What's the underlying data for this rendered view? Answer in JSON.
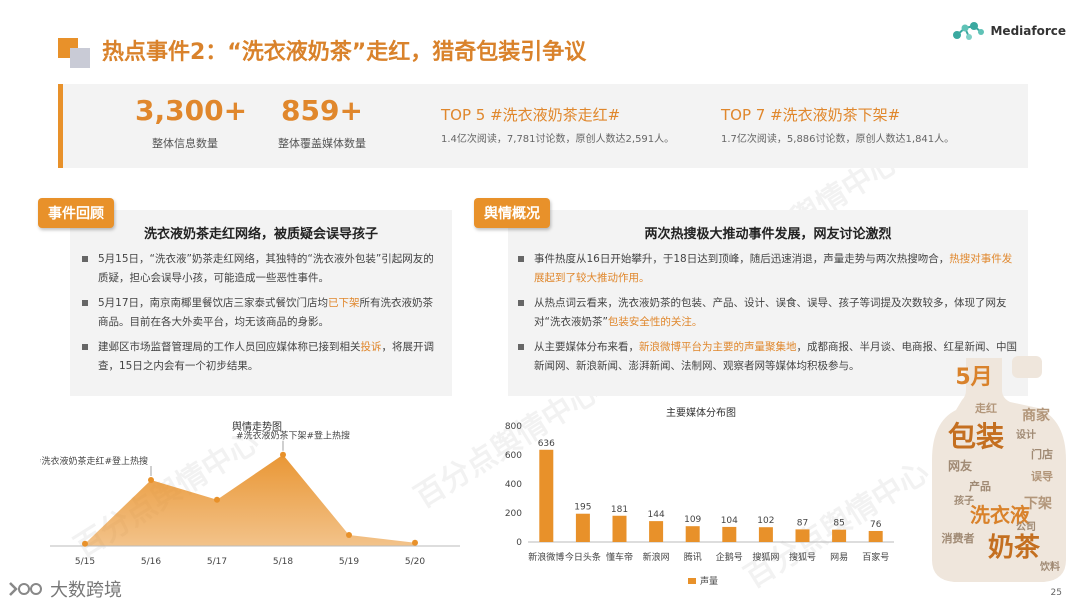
{
  "header": {
    "title": "热点事件2：“洗衣液奶茶”走红，猎奇包装引争议",
    "brand": "Mediaforce"
  },
  "stats": [
    {
      "value": "3,300+",
      "label": "整体信息数量"
    },
    {
      "value": "859+",
      "label": "整体覆盖媒体数量"
    }
  ],
  "topics": [
    {
      "title": "TOP 5 #洗衣液奶茶走红#",
      "desc": "1.4亿次阅读，7,781讨论数，原创人数达2,591人。"
    },
    {
      "title": "TOP 7 #洗衣液奶茶下架#",
      "desc": "1.7亿次阅读，5,886讨论数，原创人数达1,841人。"
    }
  ],
  "left_section": {
    "tag": "事件回顾",
    "heading": "洗衣液奶茶走红网络，被质疑会误导孩子",
    "bullets": [
      {
        "a": "5月15日，“洗衣液”奶茶走红网络，其独特的“洗衣液外包装”引起网友的质疑，担心会误导小孩，可能造成一些恶性事件。",
        "h": "",
        "b": ""
      },
      {
        "a": "5月17日，南京南椰里餐饮店三家泰式餐饮门店均",
        "h": "已下架",
        "b": "所有洗衣液奶茶商品。目前在各大外卖平台，均无该商品的身影。"
      },
      {
        "a": "建邺区市场监督管理局的工作人员回应媒体称已接到相关",
        "h": "投诉",
        "b": "，将展开调查，15日之内会有一个初步结果。"
      }
    ]
  },
  "right_section": {
    "tag": "舆情概况",
    "heading": "两次热搜极大推动事件发展，网友讨论激烈",
    "bullets": [
      {
        "a": "事件热度从16日开始攀升，于18日达到顶峰，随后迅速消退，声量走势与两次热搜吻合，",
        "h": "热搜对事件发展起到了较大推动作用。",
        "b": ""
      },
      {
        "a": "从热点词云看来，洗衣液奶茶的包装、产品、设计、误食、误导、孩子等词提及次数较多，体现了网友对“洗衣液奶茶”",
        "h": "包装安全性的关注。",
        "b": ""
      },
      {
        "a": "从主要媒体分布来看，",
        "h": "新浪微博平台为主要的声量聚集地",
        "b": "，成都商报、半月谈、电商报、红星新闻、中国新闻网、新浪新闻、澎湃新闻、法制网、观察者网等媒体均积极参与。"
      }
    ]
  },
  "chart_data": [
    {
      "type": "area",
      "title": "舆情走势图",
      "x": [
        "5/15",
        "5/16",
        "5/17",
        "5/18",
        "5/19",
        "5/20"
      ],
      "values": [
        2,
        60,
        42,
        83,
        10,
        3
      ],
      "ylim": [
        0,
        100
      ],
      "color": "#e8912a",
      "annotations": [
        {
          "x": "5/16",
          "text": "#洗衣液奶茶走红#登上热搜"
        },
        {
          "x": "5/18",
          "text": "#洗衣液奶茶下架#登上热搜"
        }
      ]
    },
    {
      "type": "bar",
      "title": "主要媒体分布图",
      "categories": [
        "新浪微博",
        "今日头条",
        "懂车帝",
        "新浪网",
        "腾讯",
        "企鹅号",
        "搜狐网",
        "搜狐号",
        "网易",
        "百家号"
      ],
      "series": [
        {
          "name": "声量",
          "values": [
            636,
            195,
            181,
            144,
            109,
            104,
            102,
            87,
            85,
            76
          ]
        }
      ],
      "yticks": [
        "0",
        "200",
        "400",
        "600",
        "800"
      ],
      "ylim": [
        0,
        800
      ],
      "color": "#e8912a"
    }
  ],
  "wordcloud": {
    "words": [
      "5月",
      "包装",
      "洗衣液",
      "下架",
      "奶茶",
      "网友",
      "商家",
      "消费者",
      "门店",
      "产品",
      "误导",
      "孩子",
      "公司",
      "走红",
      "设计",
      "饮料"
    ]
  },
  "footer": {
    "logo": "大数跨境",
    "page": "25"
  }
}
